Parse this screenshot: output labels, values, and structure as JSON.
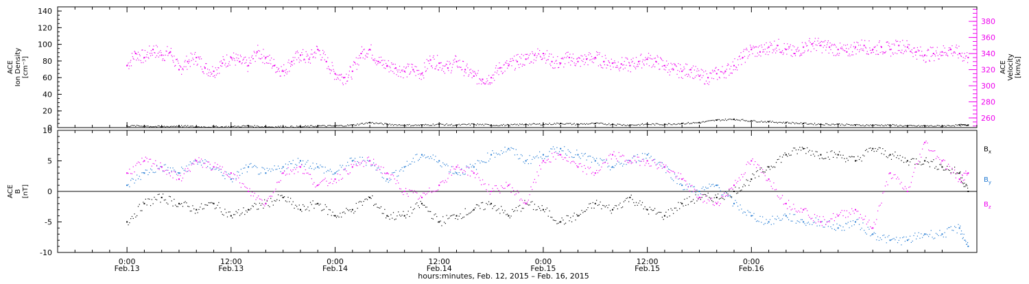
{
  "chart_data": [
    {
      "type": "scatter",
      "panel": "plasma",
      "ylabel_left": [
        "ACE",
        "Ion Density",
        "[cm⁻³]"
      ],
      "ylabel_right": [
        "ACE",
        "Velocity",
        "[km/s]"
      ],
      "ylim_left": [
        0,
        145
      ],
      "yticks_left": [
        "0",
        "20",
        "40",
        "60",
        "80",
        "100",
        "120",
        "140"
      ],
      "ylim_right": [
        248,
        398
      ],
      "yticks_right": [
        "260",
        "280",
        "300",
        "320",
        "340",
        "360",
        "380"
      ],
      "series": [
        {
          "axis": "right",
          "color": "#ee00ee",
          "x": [
            0,
            1,
            2,
            3,
            4,
            5,
            6,
            7,
            8,
            9,
            10,
            11,
            12,
            13,
            14,
            15,
            16,
            17,
            18,
            19,
            20,
            21,
            22,
            23,
            24,
            25,
            26,
            27,
            28,
            29,
            30,
            31,
            32,
            33,
            34,
            35,
            36,
            37,
            38,
            39,
            40,
            41,
            42,
            43,
            44,
            45,
            46,
            47,
            48,
            49,
            50,
            51,
            52,
            53,
            54,
            55,
            56,
            57,
            58,
            59,
            60,
            61,
            62,
            63,
            64,
            65,
            66,
            67,
            68,
            69,
            70,
            71,
            72,
            73,
            74,
            75,
            76,
            77,
            78,
            79,
            80,
            81,
            82,
            83,
            84,
            85,
            86,
            87,
            88,
            89,
            90,
            91,
            92,
            93,
            94,
            95,
            96,
            97
          ],
          "y": [
            325,
            340,
            335,
            345,
            338,
            342,
            320,
            330,
            335,
            322,
            318,
            328,
            335,
            330,
            325,
            342,
            335,
            325,
            318,
            330,
            338,
            333,
            345,
            330,
            315,
            310,
            318,
            340,
            345,
            330,
            325,
            322,
            318,
            320,
            315,
            332,
            328,
            322,
            330,
            320,
            312,
            308,
            310,
            322,
            325,
            330,
            333,
            338,
            340,
            330,
            328,
            335,
            330,
            333,
            335,
            330,
            328,
            327,
            325,
            330,
            333,
            330,
            325,
            320,
            318,
            320,
            312,
            310,
            315,
            318,
            325,
            335,
            345,
            342,
            348,
            350,
            345,
            340,
            348,
            352,
            350,
            348,
            345,
            342,
            348,
            350,
            345,
            348,
            345,
            350,
            348,
            342,
            338,
            340,
            342,
            345,
            340,
            335
          ]
        },
        {
          "axis": "left",
          "color": "#000000",
          "x": [
            0,
            2,
            4,
            6,
            8,
            10,
            12,
            14,
            16,
            18,
            20,
            22,
            24,
            26,
            28,
            30,
            32,
            34,
            36,
            38,
            40,
            42,
            44,
            46,
            48,
            50,
            52,
            54,
            56,
            58,
            60,
            62,
            64,
            66,
            68,
            70,
            72,
            74,
            76,
            78,
            80,
            82,
            84,
            86,
            88,
            90,
            92,
            94,
            96,
            97
          ],
          "y": [
            2,
            2,
            1,
            2,
            1,
            1,
            1,
            2,
            1,
            1,
            1,
            2,
            2,
            3,
            6,
            4,
            3,
            3,
            4,
            3,
            4,
            3,
            3,
            4,
            4,
            5,
            4,
            5,
            4,
            3,
            4,
            4,
            5,
            6,
            9,
            10,
            8,
            7,
            6,
            5,
            4,
            4,
            3,
            3,
            3,
            2,
            2,
            2,
            3,
            3
          ]
        }
      ]
    },
    {
      "type": "scatter",
      "panel": "magnetic",
      "ylabel_left": [
        "ACE",
        "B",
        "[nT]"
      ],
      "ylim": [
        -10,
        10
      ],
      "yticks": [
        "-10",
        "-5",
        "0",
        "5",
        "10"
      ],
      "series": [
        {
          "name": "Bx",
          "color": "#000000",
          "x": [
            0,
            2,
            4,
            6,
            8,
            10,
            12,
            14,
            16,
            18,
            20,
            22,
            24,
            26,
            28,
            30,
            32,
            34,
            36,
            38,
            40,
            42,
            44,
            46,
            48,
            50,
            52,
            54,
            56,
            58,
            60,
            62,
            64,
            66,
            68,
            70,
            72,
            74,
            76,
            78,
            80,
            82,
            84,
            86,
            88,
            90,
            92,
            94,
            96,
            97
          ],
          "y": [
            -5,
            -2,
            -1,
            -2,
            -3,
            -2,
            -4,
            -3,
            -2,
            -1,
            -3,
            -2,
            -4,
            -3,
            -1,
            -4,
            -4,
            -2,
            -5,
            -4,
            -3,
            -2,
            -4,
            -2,
            -3,
            -5,
            -4,
            -2,
            -3,
            -1,
            -3,
            -4,
            -2,
            -1,
            -1,
            0,
            2,
            4,
            6,
            7,
            6,
            6,
            5,
            7,
            6,
            5,
            5,
            4,
            3,
            0
          ]
        },
        {
          "name": "By",
          "color": "#1e78d2",
          "x": [
            0,
            2,
            4,
            6,
            8,
            10,
            12,
            14,
            16,
            18,
            20,
            22,
            24,
            26,
            28,
            30,
            32,
            34,
            36,
            38,
            40,
            42,
            44,
            46,
            48,
            50,
            52,
            54,
            56,
            58,
            60,
            62,
            64,
            66,
            68,
            70,
            72,
            74,
            76,
            78,
            80,
            82,
            84,
            86,
            88,
            90,
            92,
            94,
            96,
            97
          ],
          "y": [
            1,
            3,
            4,
            3,
            5,
            4,
            2,
            4,
            3,
            4,
            5,
            4,
            3,
            5,
            5,
            2,
            4,
            6,
            5,
            3,
            4,
            6,
            7,
            5,
            6,
            7,
            6,
            5,
            4,
            5,
            6,
            4,
            1,
            0,
            1,
            -2,
            -4,
            -5,
            -4,
            -5,
            -5,
            -6,
            -5,
            -7,
            -8,
            -8,
            -7,
            -7,
            -6,
            -9
          ]
        },
        {
          "name": "Bz",
          "color": "#ee00ee",
          "x": [
            0,
            2,
            4,
            6,
            8,
            10,
            12,
            14,
            16,
            18,
            20,
            22,
            24,
            26,
            28,
            30,
            32,
            34,
            36,
            38,
            40,
            42,
            44,
            46,
            48,
            50,
            52,
            54,
            56,
            58,
            60,
            62,
            64,
            66,
            68,
            70,
            72,
            74,
            76,
            78,
            80,
            82,
            84,
            86,
            88,
            90,
            92,
            94,
            96,
            97
          ],
          "y": [
            3,
            5,
            4,
            2,
            5,
            4,
            3,
            0,
            -2,
            3,
            4,
            1,
            2,
            4,
            5,
            3,
            0,
            -1,
            1,
            4,
            3,
            0,
            1,
            -2,
            5,
            6,
            4,
            3,
            6,
            5,
            5,
            4,
            2,
            -1,
            -2,
            1,
            5,
            2,
            -2,
            -3,
            -5,
            -4,
            -3,
            -6,
            3,
            0,
            8,
            5,
            2,
            3
          ]
        }
      ]
    }
  ],
  "legend": [
    {
      "name": "B",
      "sub": "x",
      "color": "#000000"
    },
    {
      "name": "B",
      "sub": "y",
      "color": "#1e78d2"
    },
    {
      "name": "B",
      "sub": "z",
      "color": "#ee00ee"
    }
  ],
  "x_axis": {
    "range_hours": [
      -8,
      98
    ],
    "ticks": [
      {
        "hour": 0,
        "time": "0:00",
        "date": "Feb.13"
      },
      {
        "hour": 12,
        "time": "12:00",
        "date": "Feb.13"
      },
      {
        "hour": 24,
        "time": "0:00",
        "date": "Feb.14"
      },
      {
        "hour": 36,
        "time": "12:00",
        "date": "Feb.14"
      },
      {
        "hour": 48,
        "time": "0:00",
        "date": "Feb.15"
      },
      {
        "hour": 60,
        "time": "12:00",
        "date": "Feb.15"
      },
      {
        "hour": 72,
        "time": "0:00",
        "date": "Feb.16"
      }
    ],
    "label": "hours:minutes, Feb. 12, 2015 – Feb. 16, 2015"
  }
}
